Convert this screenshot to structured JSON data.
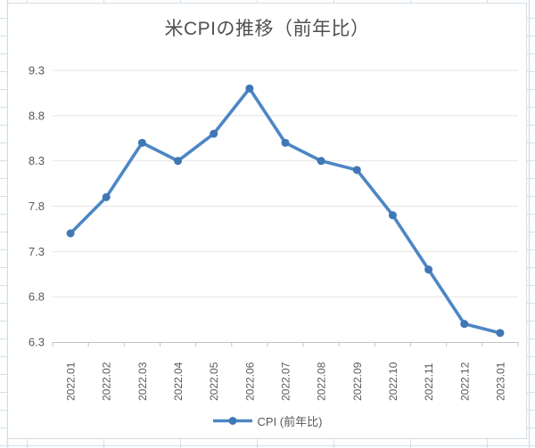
{
  "chart_data": {
    "type": "line",
    "title": "米CPIの推移（前年比）",
    "categories": [
      "2022.01",
      "2022.02",
      "2022.03",
      "2022.04",
      "2022.05",
      "2022.06",
      "2022.07",
      "2022.08",
      "2022.09",
      "2022.10",
      "2022.11",
      "2022.12",
      "2023.01"
    ],
    "series": [
      {
        "name": "CPI (前年比)",
        "values": [
          7.5,
          7.9,
          8.5,
          8.3,
          8.6,
          9.1,
          8.5,
          8.3,
          8.2,
          7.7,
          7.1,
          6.5,
          6.4
        ]
      }
    ],
    "xlabel": "",
    "ylabel": "",
    "ylim": [
      6.3,
      9.3
    ],
    "yticks": [
      6.3,
      6.8,
      7.3,
      7.8,
      8.3,
      8.8,
      9.3
    ],
    "grid": "horizontal",
    "legend_position": "bottom",
    "colors": {
      "line": "#4d86c4",
      "marker": "#3f78b5",
      "gridline": "#e4e4e4",
      "axis": "#c2c2c2",
      "tick_label": "#595959",
      "title": "#505050",
      "chart_border": "#d4dce4",
      "sheet_grid": "#cfe2ee"
    }
  }
}
